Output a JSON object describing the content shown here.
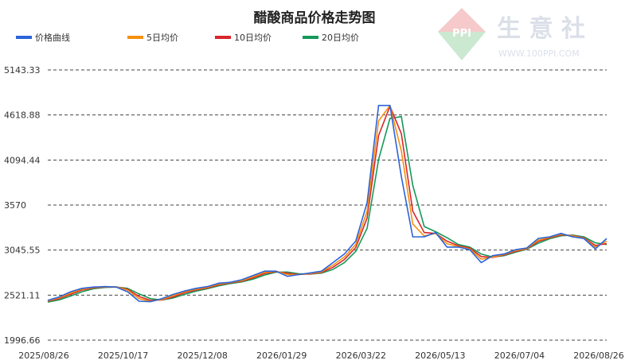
{
  "watermark": {
    "logo_text": "PPI",
    "brand_text": "生 意 社",
    "site_text": "WWW.100PPI.COM"
  },
  "chart_data": {
    "type": "line",
    "title": "醋酸商品价格走势图",
    "xlabel": "",
    "ylabel": "",
    "ylim": [
      1996.66,
      5143.33
    ],
    "y_ticks": [
      "5143.33",
      "4618.88",
      "4094.44",
      "3570",
      "3045.55",
      "2521.11",
      "1996.66"
    ],
    "x_ticks": [
      "2025/08/26",
      "2025/10/17",
      "2025/12/08",
      "2026/01/29",
      "2026/03/22",
      "2026/05/13",
      "2026/07/04",
      "2026/08/26"
    ],
    "grid": "horizontal-dashed",
    "legend": "top-left",
    "x": [
      "2025/08/26",
      "2025/09/02",
      "2025/09/09",
      "2025/09/16",
      "2025/09/23",
      "2025/09/30",
      "2025/10/07",
      "2025/10/17",
      "2025/10/24",
      "2025/10/31",
      "2025/11/07",
      "2025/11/14",
      "2025/11/21",
      "2025/11/28",
      "2025/12/08",
      "2025/12/15",
      "2025/12/22",
      "2025/12/29",
      "2026/01/05",
      "2026/01/12",
      "2026/01/19",
      "2026/01/29",
      "2026/02/05",
      "2026/02/12",
      "2026/02/19",
      "2026/02/26",
      "2026/03/05",
      "2026/03/12",
      "2026/03/22",
      "2026/03/29",
      "2026/04/05",
      "2026/04/12",
      "2026/04/19",
      "2026/04/26",
      "2026/05/03",
      "2026/05/13",
      "2026/05/20",
      "2026/05/27",
      "2026/06/03",
      "2026/06/10",
      "2026/06/17",
      "2026/06/24",
      "2026/07/04",
      "2026/07/11",
      "2026/07/18",
      "2026/07/25",
      "2026/08/01",
      "2026/08/08",
      "2026/08/15",
      "2026/08/26"
    ],
    "series": [
      {
        "name": "价格曲线",
        "color": "#2b63d9",
        "values": [
          2460,
          2500,
          2560,
          2600,
          2615,
          2620,
          2615,
          2560,
          2450,
          2445,
          2480,
          2530,
          2570,
          2600,
          2620,
          2660,
          2670,
          2700,
          2750,
          2800,
          2800,
          2740,
          2760,
          2780,
          2800,
          2900,
          3000,
          3150,
          3600,
          4730,
          4730,
          3900,
          3200,
          3200,
          3250,
          3080,
          3080,
          3050,
          2900,
          2980,
          3000,
          3050,
          3070,
          3180,
          3200,
          3240,
          3200,
          3180,
          3060,
          3180
        ]
      },
      {
        "name": "5日均价",
        "color": "#f5900f",
        "values": [
          2455,
          2490,
          2545,
          2590,
          2610,
          2618,
          2617,
          2580,
          2480,
          2450,
          2470,
          2515,
          2560,
          2590,
          2612,
          2650,
          2668,
          2690,
          2735,
          2785,
          2800,
          2760,
          2760,
          2772,
          2792,
          2870,
          2965,
          3110,
          3500,
          4550,
          4730,
          4200,
          3350,
          3210,
          3240,
          3120,
          3085,
          3060,
          2940,
          2965,
          2995,
          3040,
          3065,
          3160,
          3195,
          3230,
          3210,
          3185,
          3080,
          3150
        ]
      },
      {
        "name": "10日均价",
        "color": "#d9262c",
        "values": [
          2450,
          2480,
          2530,
          2580,
          2605,
          2615,
          2617,
          2590,
          2505,
          2460,
          2465,
          2500,
          2548,
          2582,
          2605,
          2642,
          2664,
          2683,
          2722,
          2772,
          2795,
          2775,
          2762,
          2768,
          2785,
          2845,
          2935,
          3075,
          3420,
          4380,
          4720,
          4400,
          3500,
          3250,
          3240,
          3150,
          3095,
          3070,
          2970,
          2960,
          2988,
          3030,
          3060,
          3145,
          3188,
          3222,
          3215,
          3190,
          3100,
          3120
        ]
      },
      {
        "name": "20日均价",
        "color": "#149a58",
        "values": [
          2440,
          2465,
          2510,
          2560,
          2595,
          2610,
          2615,
          2600,
          2535,
          2480,
          2465,
          2488,
          2530,
          2568,
          2596,
          2630,
          2656,
          2675,
          2707,
          2755,
          2788,
          2790,
          2770,
          2766,
          2778,
          2820,
          2900,
          3030,
          3300,
          4100,
          4580,
          4600,
          3800,
          3320,
          3260,
          3190,
          3110,
          3080,
          3000,
          2965,
          2980,
          3020,
          3055,
          3125,
          3178,
          3212,
          3220,
          3200,
          3130,
          3110
        ]
      }
    ]
  }
}
